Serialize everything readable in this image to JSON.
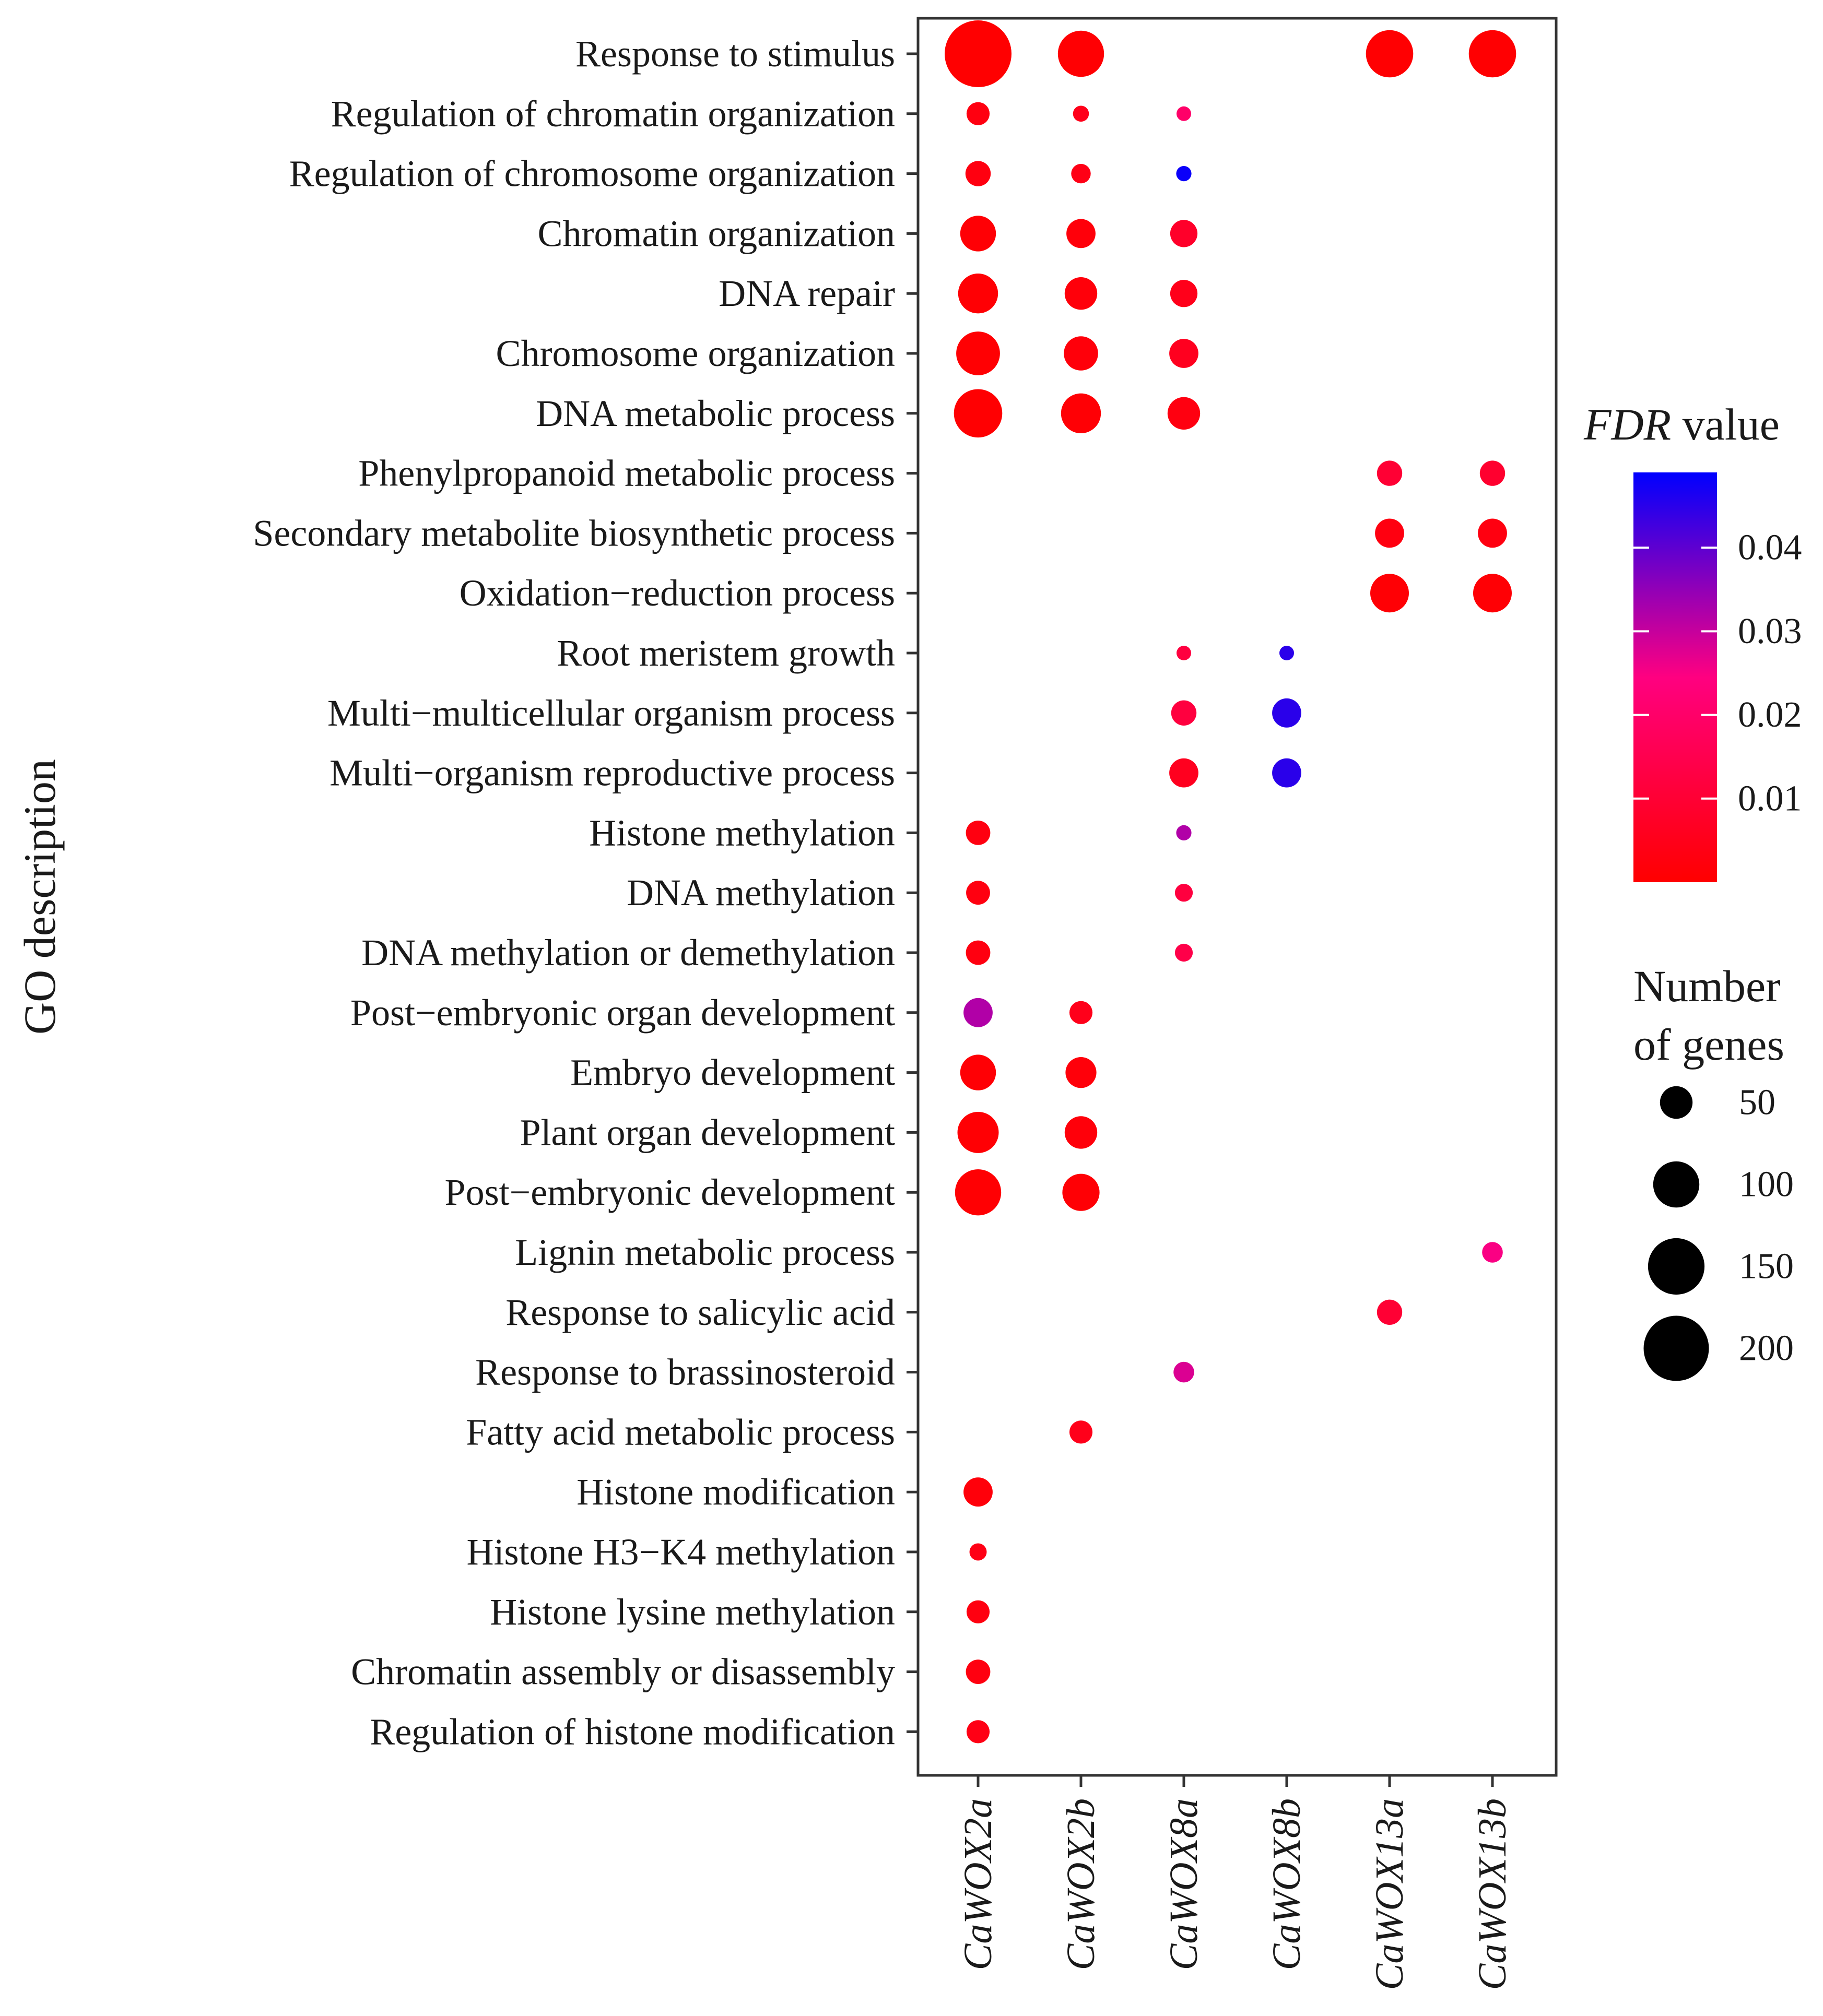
{
  "chart_data": {
    "type": "scatter",
    "subtype": "bubble",
    "ylabel": "GO description",
    "xlabel": "",
    "categories_y": [
      "Response to stimulus",
      "Regulation of chromatin organization",
      "Regulation of chromosome organization",
      "Chromatin organization",
      "DNA repair",
      "Chromosome organization",
      "DNA metabolic process",
      "Phenylpropanoid metabolic process",
      "Secondary metabolite biosynthetic process",
      "Oxidation−reduction process",
      "Root meristem growth",
      "Multi−multicellular organism process",
      "Multi−organism reproductive process",
      "Histone methylation",
      "DNA methylation",
      "DNA methylation or demethylation",
      "Post−embryonic organ development",
      "Embryo development",
      "Plant organ development",
      "Post−embryonic development",
      "Lignin metabolic process",
      "Response to salicylic acid",
      "Response to brassinosteroid",
      "Fatty acid metabolic process",
      "Histone modification",
      "Histone H3−K4 methylation",
      "Histone lysine methylation",
      "Chromatin assembly or disassembly",
      "Regulation of histone modification"
    ],
    "categories_x": [
      "CaWOX2a",
      "CaWOX2b",
      "CaWOX8a",
      "CaWOX8b",
      "CaWOX13a",
      "CaWOX13b"
    ],
    "points": [
      {
        "x": "CaWOX2a",
        "y": "Response to stimulus",
        "genes": 210,
        "fdr": 0.0001
      },
      {
        "x": "CaWOX2b",
        "y": "Response to stimulus",
        "genes": 100,
        "fdr": 0.0005
      },
      {
        "x": "CaWOX13a",
        "y": "Response to stimulus",
        "genes": 105,
        "fdr": 0.0003
      },
      {
        "x": "CaWOX13b",
        "y": "Response to stimulus",
        "genes": 105,
        "fdr": 0.0003
      },
      {
        "x": "CaWOX2a",
        "y": "Regulation of chromatin organization",
        "genes": 25,
        "fdr": 0.003
      },
      {
        "x": "CaWOX2b",
        "y": "Regulation of chromatin organization",
        "genes": 12,
        "fdr": 0.005
      },
      {
        "x": "CaWOX8a",
        "y": "Regulation of chromatin organization",
        "genes": 10,
        "fdr": 0.02
      },
      {
        "x": "CaWOX2a",
        "y": "Regulation of chromosome organization",
        "genes": 30,
        "fdr": 0.003
      },
      {
        "x": "CaWOX2b",
        "y": "Regulation of chromosome organization",
        "genes": 18,
        "fdr": 0.004
      },
      {
        "x": "CaWOX8a",
        "y": "Regulation of chromosome organization",
        "genes": 11,
        "fdr": 0.048
      },
      {
        "x": "CaWOX2a",
        "y": "Chromatin organization",
        "genes": 60,
        "fdr": 0.001
      },
      {
        "x": "CaWOX2b",
        "y": "Chromatin organization",
        "genes": 40,
        "fdr": 0.002
      },
      {
        "x": "CaWOX8a",
        "y": "Chromatin organization",
        "genes": 35,
        "fdr": 0.008
      },
      {
        "x": "CaWOX2a",
        "y": "DNA repair",
        "genes": 75,
        "fdr": 0.0008
      },
      {
        "x": "CaWOX2b",
        "y": "DNA repair",
        "genes": 50,
        "fdr": 0.002
      },
      {
        "x": "CaWOX8a",
        "y": "DNA repair",
        "genes": 35,
        "fdr": 0.005
      },
      {
        "x": "CaWOX2a",
        "y": "Chromosome organization",
        "genes": 90,
        "fdr": 0.0005
      },
      {
        "x": "CaWOX2b",
        "y": "Chromosome organization",
        "genes": 55,
        "fdr": 0.002
      },
      {
        "x": "CaWOX8a",
        "y": "Chromosome organization",
        "genes": 40,
        "fdr": 0.006
      },
      {
        "x": "CaWOX2a",
        "y": "DNA metabolic process",
        "genes": 110,
        "fdr": 0.0003
      },
      {
        "x": "CaWOX2b",
        "y": "DNA metabolic process",
        "genes": 75,
        "fdr": 0.001
      },
      {
        "x": "CaWOX8a",
        "y": "DNA metabolic process",
        "genes": 50,
        "fdr": 0.003
      },
      {
        "x": "CaWOX13a",
        "y": "Phenylpropanoid metabolic process",
        "genes": 30,
        "fdr": 0.01
      },
      {
        "x": "CaWOX13b",
        "y": "Phenylpropanoid metabolic process",
        "genes": 30,
        "fdr": 0.009
      },
      {
        "x": "CaWOX13a",
        "y": "Secondary metabolite biosynthetic process",
        "genes": 40,
        "fdr": 0.003
      },
      {
        "x": "CaWOX13b",
        "y": "Secondary metabolite biosynthetic process",
        "genes": 40,
        "fdr": 0.003
      },
      {
        "x": "CaWOX13a",
        "y": "Oxidation−reduction process",
        "genes": 70,
        "fdr": 0.001
      },
      {
        "x": "CaWOX13b",
        "y": "Oxidation−reduction process",
        "genes": 70,
        "fdr": 0.001
      },
      {
        "x": "CaWOX8a",
        "y": "Root meristem growth",
        "genes": 10,
        "fdr": 0.012
      },
      {
        "x": "CaWOX8b",
        "y": "Root meristem growth",
        "genes": 10,
        "fdr": 0.045
      },
      {
        "x": "CaWOX8a",
        "y": "Multi−multicellular organism process",
        "genes": 30,
        "fdr": 0.012
      },
      {
        "x": "CaWOX8b",
        "y": "Multi−multicellular organism process",
        "genes": 40,
        "fdr": 0.045
      },
      {
        "x": "CaWOX8a",
        "y": "Multi−organism reproductive process",
        "genes": 40,
        "fdr": 0.006
      },
      {
        "x": "CaWOX8b",
        "y": "Multi−organism reproductive process",
        "genes": 40,
        "fdr": 0.045
      },
      {
        "x": "CaWOX2a",
        "y": "Histone methylation",
        "genes": 28,
        "fdr": 0.003
      },
      {
        "x": "CaWOX8a",
        "y": "Histone methylation",
        "genes": 11,
        "fdr": 0.032
      },
      {
        "x": "CaWOX2a",
        "y": "DNA methylation",
        "genes": 27,
        "fdr": 0.003
      },
      {
        "x": "CaWOX8a",
        "y": "DNA methylation",
        "genes": 15,
        "fdr": 0.012
      },
      {
        "x": "CaWOX2a",
        "y": "DNA methylation or demethylation",
        "genes": 28,
        "fdr": 0.003
      },
      {
        "x": "CaWOX8a",
        "y": "DNA methylation or demethylation",
        "genes": 15,
        "fdr": 0.014
      },
      {
        "x": "CaWOX2a",
        "y": "Post−embryonic organ development",
        "genes": 40,
        "fdr": 0.032
      },
      {
        "x": "CaWOX2b",
        "y": "Post−embryonic organ development",
        "genes": 25,
        "fdr": 0.005
      },
      {
        "x": "CaWOX2a",
        "y": "Embryo development",
        "genes": 60,
        "fdr": 0.001
      },
      {
        "x": "CaWOX2b",
        "y": "Embryo development",
        "genes": 45,
        "fdr": 0.002
      },
      {
        "x": "CaWOX2a",
        "y": "Plant organ development",
        "genes": 80,
        "fdr": 0.0008
      },
      {
        "x": "CaWOX2b",
        "y": "Plant organ development",
        "genes": 50,
        "fdr": 0.002
      },
      {
        "x": "CaWOX2a",
        "y": "Post−embryonic development",
        "genes": 100,
        "fdr": 0.0005
      },
      {
        "x": "CaWOX2b",
        "y": "Post−embryonic development",
        "genes": 65,
        "fdr": 0.001
      },
      {
        "x": "CaWOX13b",
        "y": "Lignin metabolic process",
        "genes": 20,
        "fdr": 0.025
      },
      {
        "x": "CaWOX13a",
        "y": "Response to salicylic acid",
        "genes": 30,
        "fdr": 0.01
      },
      {
        "x": "CaWOX8a",
        "y": "Response to brassinosteroid",
        "genes": 20,
        "fdr": 0.028
      },
      {
        "x": "CaWOX2b",
        "y": "Fatty acid metabolic process",
        "genes": 25,
        "fdr": 0.005
      },
      {
        "x": "CaWOX2a",
        "y": "Histone modification",
        "genes": 40,
        "fdr": 0.002
      },
      {
        "x": "CaWOX2a",
        "y": "Histone H3−K4 methylation",
        "genes": 14,
        "fdr": 0.004
      },
      {
        "x": "CaWOX2a",
        "y": "Histone lysine methylation",
        "genes": 25,
        "fdr": 0.003
      },
      {
        "x": "CaWOX2a",
        "y": "Chromatin assembly or disassembly",
        "genes": 28,
        "fdr": 0.003
      },
      {
        "x": "CaWOX2a",
        "y": "Regulation of histone modification",
        "genes": 25,
        "fdr": 0.004
      }
    ],
    "color_legend": {
      "title_italic": "FDR",
      "title_rest": " value",
      "ticks": [
        0.01,
        0.02,
        0.03,
        0.04
      ],
      "tick_labels": [
        "0.01",
        "0.02",
        "0.03",
        "0.04"
      ],
      "range": [
        0.0,
        0.049
      ],
      "low_color": "#ff0000",
      "high_color": "#0000ff"
    },
    "size_legend": {
      "title_line1": "Number",
      "title_line2": "of genes",
      "values": [
        50,
        100,
        150,
        200
      ],
      "labels": [
        "50",
        "100",
        "150",
        "200"
      ],
      "range": [
        0,
        210
      ]
    },
    "legend_placement": "right",
    "grid": false
  }
}
